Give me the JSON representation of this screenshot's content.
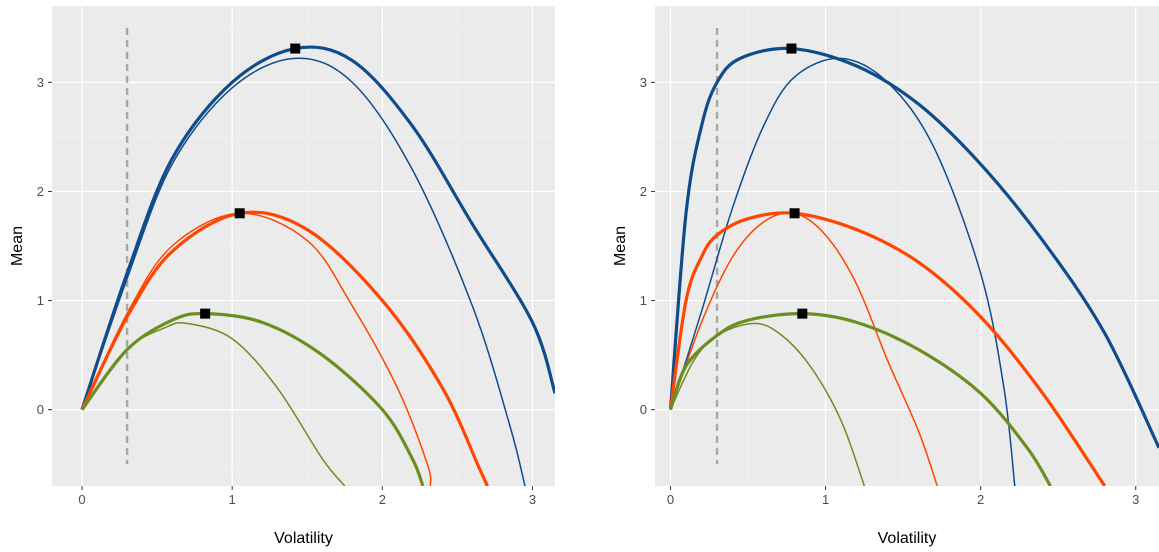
{
  "chart_data": [
    {
      "type": "line",
      "panel": "left",
      "xlabel": "Volatility",
      "ylabel": "Mean",
      "xlim": [
        -0.2,
        3.15
      ],
      "ylim": [
        -0.7,
        3.7
      ],
      "x_ticks": [
        0,
        1,
        2,
        3
      ],
      "x_tick_labels": [
        "0",
        "1",
        "2",
        "3"
      ],
      "y_ticks": [
        0,
        1,
        2,
        3
      ],
      "y_tick_labels": [
        "0",
        "1",
        "2",
        "3"
      ],
      "grid": true,
      "background": "#ebebeb",
      "reference_line": {
        "orientation": "vertical",
        "x": 0.3,
        "y_range": [
          -0.5,
          3.5
        ],
        "style": "dashed",
        "color": "#a6a6a6"
      },
      "series": [
        {
          "color": "#0f4c8c",
          "width": "thick",
          "points": [
            [
              0,
              0
            ],
            [
              0.3,
              1.25
            ],
            [
              0.6,
              2.3
            ],
            [
              1.0,
              3.0
            ],
            [
              1.42,
              3.31
            ],
            [
              1.8,
              3.2
            ],
            [
              2.2,
              2.6
            ],
            [
              2.6,
              1.7
            ],
            [
              3.0,
              0.8
            ],
            [
              3.15,
              0.15
            ]
          ]
        },
        {
          "color": "#0f4c8c",
          "width": "thin",
          "points": [
            [
              0,
              0
            ],
            [
              0.3,
              1.2
            ],
            [
              0.6,
              2.25
            ],
            [
              1.0,
              2.95
            ],
            [
              1.42,
              3.22
            ],
            [
              1.8,
              3.0
            ],
            [
              2.2,
              2.2
            ],
            [
              2.6,
              0.95
            ],
            [
              2.85,
              -0.15
            ],
            [
              2.95,
              -0.7
            ]
          ]
        },
        {
          "color": "#ff4500",
          "width": "thick",
          "points": [
            [
              0,
              0
            ],
            [
              0.3,
              0.85
            ],
            [
              0.6,
              1.45
            ],
            [
              1.05,
              1.8
            ],
            [
              1.5,
              1.65
            ],
            [
              2.0,
              1.0
            ],
            [
              2.4,
              0.2
            ],
            [
              2.65,
              -0.55
            ],
            [
              2.7,
              -0.7
            ]
          ]
        },
        {
          "color": "#ff4500",
          "width": "thin",
          "points": [
            [
              0,
              0
            ],
            [
              0.3,
              0.88
            ],
            [
              0.6,
              1.5
            ],
            [
              1.05,
              1.8
            ],
            [
              1.5,
              1.55
            ],
            [
              1.8,
              0.95
            ],
            [
              2.1,
              0.2
            ],
            [
              2.3,
              -0.5
            ],
            [
              2.32,
              -0.7
            ]
          ]
        },
        {
          "color": "#6b8e23",
          "width": "thick",
          "points": [
            [
              0,
              0
            ],
            [
              0.3,
              0.55
            ],
            [
              0.6,
              0.82
            ],
            [
              0.82,
              0.88
            ],
            [
              1.2,
              0.8
            ],
            [
              1.6,
              0.5
            ],
            [
              2.0,
              0.0
            ],
            [
              2.2,
              -0.45
            ],
            [
              2.27,
              -0.7
            ]
          ]
        },
        {
          "color": "#6b8e23",
          "width": "thin",
          "points": [
            [
              0,
              0
            ],
            [
              0.3,
              0.55
            ],
            [
              0.55,
              0.75
            ],
            [
              0.7,
              0.79
            ],
            [
              1.0,
              0.65
            ],
            [
              1.3,
              0.2
            ],
            [
              1.6,
              -0.45
            ],
            [
              1.75,
              -0.7
            ]
          ]
        }
      ],
      "markers": [
        {
          "x": 1.42,
          "y": 3.31,
          "shape": "square",
          "color": "#000000"
        },
        {
          "x": 1.05,
          "y": 1.8,
          "shape": "square",
          "color": "#000000"
        },
        {
          "x": 0.82,
          "y": 0.88,
          "shape": "square",
          "color": "#000000"
        }
      ]
    },
    {
      "type": "line",
      "panel": "right",
      "xlabel": "Volatility",
      "ylabel": "Mean",
      "xlim": [
        -0.1,
        3.15
      ],
      "ylim": [
        -0.7,
        3.7
      ],
      "x_ticks": [
        0,
        1,
        2,
        3
      ],
      "x_tick_labels": [
        "0",
        "1",
        "2",
        "3"
      ],
      "y_ticks": [
        0,
        1,
        2,
        3
      ],
      "y_tick_labels": [
        "0",
        "1",
        "2",
        "3"
      ],
      "grid": true,
      "background": "#ebebeb",
      "reference_line": {
        "orientation": "vertical",
        "x": 0.3,
        "y_range": [
          -0.5,
          3.5
        ],
        "style": "dashed",
        "color": "#a6a6a6"
      },
      "series": [
        {
          "color": "#0f4c8c",
          "width": "thick",
          "points": [
            [
              0,
              0
            ],
            [
              0.1,
              1.8
            ],
            [
              0.2,
              2.6
            ],
            [
              0.3,
              3.0
            ],
            [
              0.45,
              3.22
            ],
            [
              0.78,
              3.31
            ],
            [
              1.2,
              3.15
            ],
            [
              1.6,
              2.8
            ],
            [
              2.0,
              2.25
            ],
            [
              2.4,
              1.55
            ],
            [
              2.8,
              0.7
            ],
            [
              3.15,
              -0.35
            ]
          ]
        },
        {
          "color": "#0f4c8c",
          "width": "thin",
          "points": [
            [
              0,
              0
            ],
            [
              0.2,
              0.9
            ],
            [
              0.4,
              1.85
            ],
            [
              0.6,
              2.6
            ],
            [
              0.8,
              3.05
            ],
            [
              1.1,
              3.22
            ],
            [
              1.4,
              3.0
            ],
            [
              1.7,
              2.4
            ],
            [
              2.0,
              1.25
            ],
            [
              2.15,
              0.2
            ],
            [
              2.22,
              -0.7
            ]
          ]
        },
        {
          "color": "#ff4500",
          "width": "thick",
          "points": [
            [
              0,
              0
            ],
            [
              0.1,
              1.0
            ],
            [
              0.2,
              1.4
            ],
            [
              0.3,
              1.6
            ],
            [
              0.5,
              1.75
            ],
            [
              0.8,
              1.8
            ],
            [
              1.2,
              1.65
            ],
            [
              1.6,
              1.35
            ],
            [
              2.0,
              0.85
            ],
            [
              2.4,
              0.15
            ],
            [
              2.8,
              -0.7
            ]
          ]
        },
        {
          "color": "#ff4500",
          "width": "thin",
          "points": [
            [
              0,
              0
            ],
            [
              0.2,
              0.8
            ],
            [
              0.4,
              1.4
            ],
            [
              0.6,
              1.72
            ],
            [
              0.8,
              1.8
            ],
            [
              1.0,
              1.6
            ],
            [
              1.2,
              1.15
            ],
            [
              1.4,
              0.45
            ],
            [
              1.6,
              -0.2
            ],
            [
              1.72,
              -0.7
            ]
          ]
        },
        {
          "color": "#6b8e23",
          "width": "thick",
          "points": [
            [
              0,
              0
            ],
            [
              0.1,
              0.4
            ],
            [
              0.3,
              0.68
            ],
            [
              0.5,
              0.82
            ],
            [
              0.85,
              0.88
            ],
            [
              1.2,
              0.8
            ],
            [
              1.6,
              0.55
            ],
            [
              2.0,
              0.15
            ],
            [
              2.3,
              -0.35
            ],
            [
              2.45,
              -0.7
            ]
          ]
        },
        {
          "color": "#6b8e23",
          "width": "thin",
          "points": [
            [
              0,
              0
            ],
            [
              0.15,
              0.45
            ],
            [
              0.3,
              0.68
            ],
            [
              0.53,
              0.79
            ],
            [
              0.7,
              0.7
            ],
            [
              0.9,
              0.4
            ],
            [
              1.1,
              -0.1
            ],
            [
              1.25,
              -0.7
            ]
          ]
        }
      ],
      "markers": [
        {
          "x": 0.78,
          "y": 3.31,
          "shape": "square",
          "color": "#000000"
        },
        {
          "x": 0.8,
          "y": 1.8,
          "shape": "square",
          "color": "#000000"
        },
        {
          "x": 0.85,
          "y": 0.88,
          "shape": "square",
          "color": "#000000"
        }
      ]
    }
  ]
}
